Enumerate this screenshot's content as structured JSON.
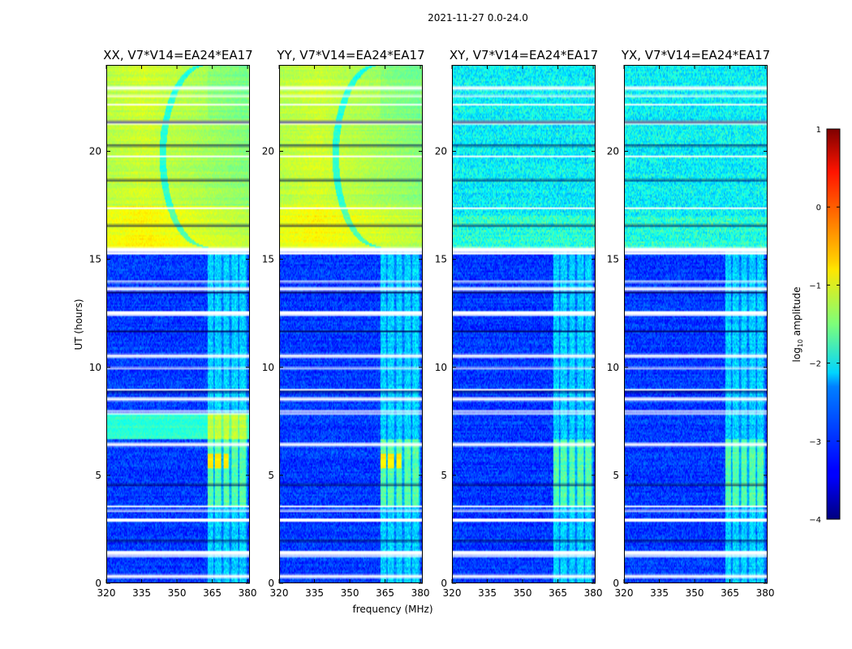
{
  "chart_data": {
    "type": "heatmap",
    "title": "2021-11-27 0.0-24.0",
    "xlabel": "frequency (MHz)",
    "ylabel": "UT (hours)",
    "xlim": [
      320,
      381
    ],
    "ylim": [
      0,
      24
    ],
    "x_ticks": [
      "320",
      "335",
      "350",
      "365",
      "380"
    ],
    "y_ticks": [
      "0",
      "5",
      "10",
      "15",
      "20"
    ],
    "x_tick_values": [
      320,
      335,
      350,
      365,
      380
    ],
    "y_tick_values": [
      0,
      5,
      10,
      15,
      20
    ],
    "panels": [
      {
        "title": "XX, V7*V14=EA24*EA17",
        "pol": "XX"
      },
      {
        "title": "YY, V7*V14=EA24*EA17",
        "pol": "YY"
      },
      {
        "title": "XY, V7*V14=EA24*EA17",
        "pol": "XY"
      },
      {
        "title": "YX, V7*V14=EA24*EA17",
        "pol": "YX"
      }
    ],
    "colorbar": {
      "label": "log10 amplitude",
      "label_main": "log",
      "label_sub": "10",
      "label_rest": " amplitude",
      "range": [
        -4,
        1
      ],
      "ticks": [
        "1",
        "0",
        "−1",
        "−2",
        "−3",
        "−4"
      ],
      "tick_values": [
        1,
        0,
        -1,
        -2,
        -3,
        -4
      ],
      "colormap": "jet"
    },
    "features": {
      "quiet_low_hours": [
        0,
        15.5
      ],
      "active_high_hours": [
        15.5,
        24
      ],
      "rfi_band_mhz": [
        363,
        380
      ],
      "rfi_strong_hours": [
        3.5,
        6.7
      ],
      "blank_rows_hours": [
        0.4,
        1.3,
        1.5,
        3.0,
        3.4,
        3.6,
        6.5,
        7.9,
        8.0,
        8.6,
        9.0,
        10.0,
        10.6,
        12.5,
        12.6,
        13.7,
        14.0,
        15.3,
        15.5,
        17.4,
        19.8,
        21.4,
        22.2,
        22.6,
        23.0
      ]
    }
  }
}
